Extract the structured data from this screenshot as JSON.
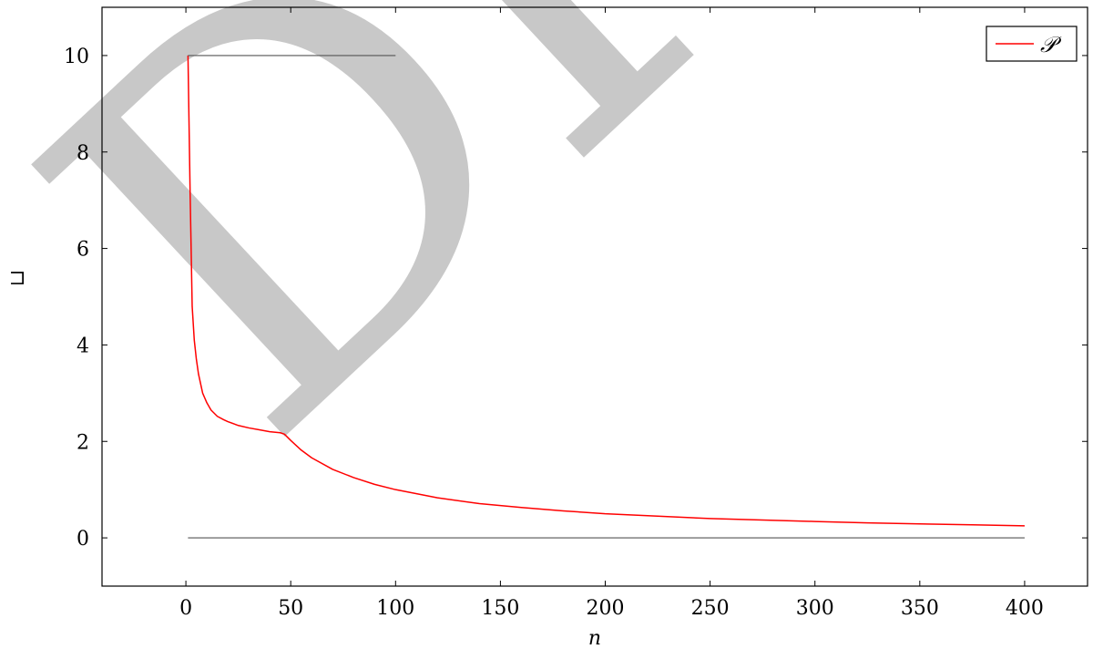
{
  "chart_data": {
    "type": "line",
    "title": "",
    "xlabel": "n",
    "ylabel": "⊔",
    "xlim": [
      -40,
      430
    ],
    "ylim": [
      -1,
      11
    ],
    "xticks": [
      0,
      50,
      100,
      150,
      200,
      250,
      300,
      350,
      400
    ],
    "yticks": [
      0,
      2,
      4,
      6,
      8,
      10
    ],
    "xtick_labels": [
      "0",
      "50",
      "100",
      "150",
      "200",
      "250",
      "300",
      "350",
      "400"
    ],
    "ytick_labels": [
      "0",
      "2",
      "4",
      "6",
      "8",
      "10"
    ],
    "grid": false,
    "legend_position": "top-right",
    "watermark": "DRAFT",
    "series": [
      {
        "name": "𝒫",
        "color": "#ff0000",
        "x": [
          1,
          2,
          3,
          4,
          5,
          6,
          8,
          10,
          12,
          15,
          18,
          20,
          25,
          30,
          35,
          40,
          45,
          47,
          50,
          55,
          60,
          70,
          80,
          90,
          100,
          120,
          140,
          160,
          180,
          200,
          225,
          250,
          275,
          300,
          325,
          350,
          375,
          400
        ],
        "y": [
          10,
          7.2,
          4.8,
          4.1,
          3.7,
          3.4,
          3.0,
          2.8,
          2.65,
          2.52,
          2.45,
          2.41,
          2.33,
          2.28,
          2.24,
          2.2,
          2.18,
          2.15,
          2.02,
          1.82,
          1.66,
          1.42,
          1.25,
          1.11,
          1.0,
          0.83,
          0.71,
          0.63,
          0.56,
          0.5,
          0.45,
          0.4,
          0.37,
          0.34,
          0.31,
          0.29,
          0.27,
          0.25
        ]
      },
      {
        "name": "",
        "color": "#555555",
        "x": [
          1,
          1,
          100
        ],
        "y": [
          10,
          10,
          10
        ]
      },
      {
        "name": "",
        "color": "#555555",
        "x": [
          1,
          400
        ],
        "y": [
          0,
          0
        ]
      }
    ]
  }
}
